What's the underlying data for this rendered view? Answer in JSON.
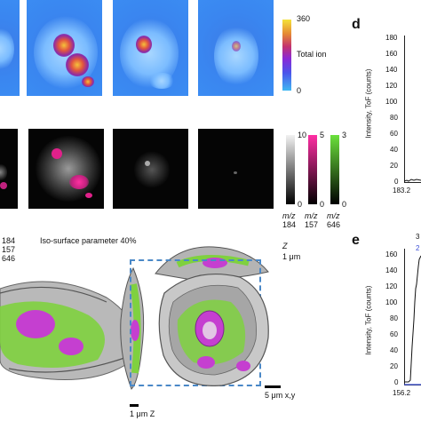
{
  "top_colorbar": {
    "max_label": "360",
    "min_label": "0",
    "caption": "Total ion"
  },
  "mid_colorbars": [
    {
      "max_label": "10",
      "min_label": "0",
      "mz_label": "m/z",
      "mz_value": "184",
      "color": "#dddddd"
    },
    {
      "max_label": "5",
      "min_label": "0",
      "mz_label": "m/z",
      "mz_value": "157",
      "color": "#e0218a"
    },
    {
      "max_label": "3",
      "min_label": "0",
      "mz_label": "m/z",
      "mz_value": "646",
      "color": "#66d93a"
    }
  ],
  "legend_left": {
    "items": [
      "184",
      "157",
      "646"
    ],
    "colors": [
      "#d8d8d8",
      "#e0218a",
      "#66d93a"
    ]
  },
  "iso_caption": "Iso-surface parameter 40%",
  "scale_bars": {
    "z_top_label": "Z",
    "z_top_value": "1 μm",
    "xy_label": "5 μm x,y",
    "z_bottom_label": "1 μm Z"
  },
  "panel_d": {
    "letter": "d",
    "ylabel": "Intensity, ToF (counts)",
    "yticks": [
      "180",
      "160",
      "140",
      "120",
      "100",
      "80",
      "60",
      "40",
      "20",
      "0"
    ],
    "xtick_left": "183.2"
  },
  "panel_e": {
    "letter": "e",
    "ylabel": "Intensity, ToF (counts)",
    "yticks": [
      "160",
      "140",
      "120",
      "100",
      "80",
      "60",
      "40",
      "20",
      "0"
    ],
    "xtick_left": "156.2",
    "legend_fragments": [
      "3",
      "2"
    ],
    "legend_colors": [
      "#222222",
      "#3b4fd6"
    ]
  }
}
